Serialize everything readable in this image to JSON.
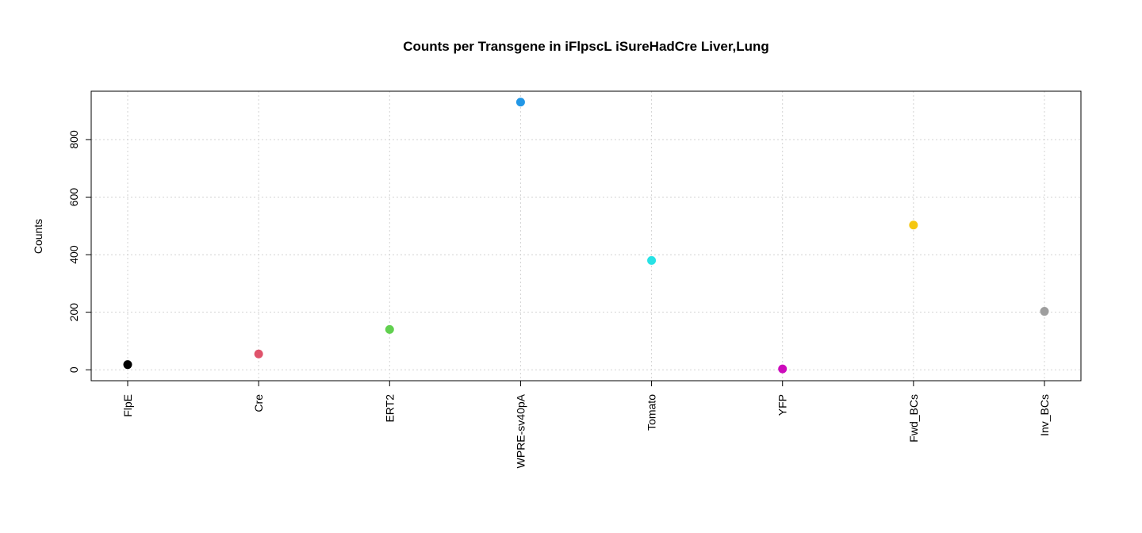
{
  "chart_data": {
    "type": "scatter",
    "title": "Counts per Transgene in iFlpscL iSureHadCre Liver,Lung",
    "xlabel": "",
    "ylabel": "Counts",
    "categories": [
      "FlpE",
      "Cre",
      "ERT2",
      "WPRE-sv40pA",
      "Tomato",
      "YFP",
      "Fwd_BCs",
      "Inv_BCs"
    ],
    "values": [
      18,
      55,
      140,
      930,
      380,
      3,
      503,
      203
    ],
    "colors": [
      "#000000",
      "#df536b",
      "#61d04f",
      "#2297e6",
      "#28e2e5",
      "#cd0bbc",
      "#f5c710",
      "#9e9e9e"
    ],
    "yticks": [
      0,
      200,
      400,
      600,
      800
    ],
    "ylim": [
      -38,
      968
    ],
    "grid": true,
    "legend": "none"
  }
}
